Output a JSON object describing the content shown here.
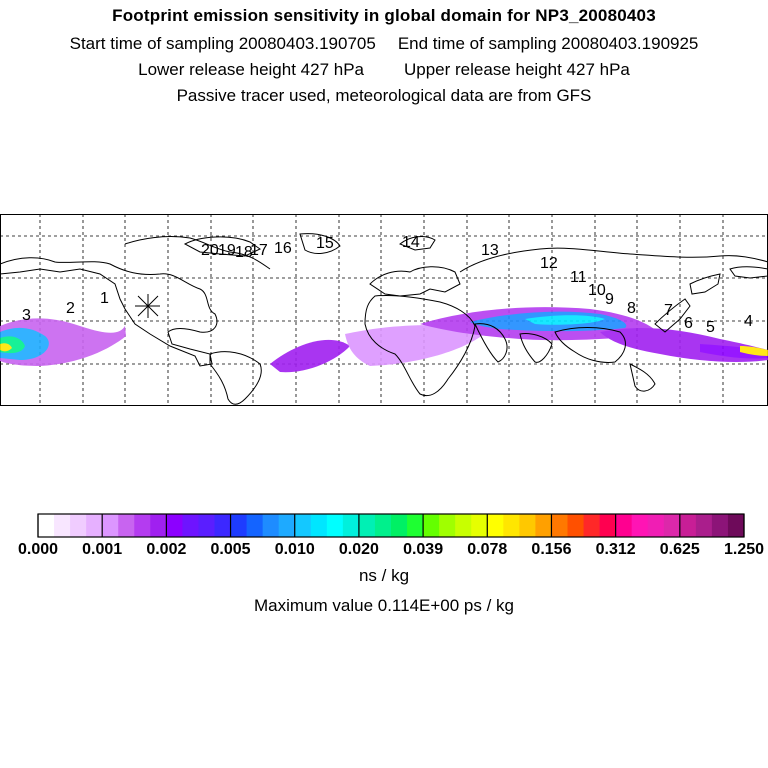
{
  "header": {
    "title": "Footprint emission sensitivity in global domain for NP3_20080403",
    "start_label": "Start time of sampling 20080403.190705",
    "end_label": "End time of sampling 20080403.190925",
    "lower_label": "Lower release height  427 hPa",
    "upper_label": "Upper release height  427 hPa",
    "tracer_note": "Passive tracer used, meteorological data are from GFS"
  },
  "map": {
    "release_marker": "asterisk-symbol",
    "trajectory_labels": [
      "1",
      "2",
      "3",
      "4",
      "5",
      "6",
      "7",
      "8",
      "9",
      "10",
      "11",
      "12",
      "13",
      "14",
      "15",
      "16",
      "17",
      "18",
      "19",
      "20"
    ]
  },
  "colorbar": {
    "colors": [
      "#ffffff",
      "#f8e6ff",
      "#f0ccff",
      "#e6b0ff",
      "#dc96ff",
      "#c864f0",
      "#b43cf0",
      "#a020f0",
      "#8c00ff",
      "#6e14ff",
      "#5a1eff",
      "#3c28ff",
      "#1e3cff",
      "#1464ff",
      "#1e8cff",
      "#1eaaff",
      "#14c8ff",
      "#00e6ff",
      "#00ffff",
      "#00f0dc",
      "#00f0b4",
      "#00f08c",
      "#00f064",
      "#1eff32",
      "#64ff00",
      "#a0ff00",
      "#c8ff00",
      "#e6ff00",
      "#ffff00",
      "#ffe600",
      "#ffc800",
      "#ffa000",
      "#ff7800",
      "#ff5000",
      "#ff2828",
      "#ff0050",
      "#ff0090",
      "#ff14b4",
      "#f01eb4",
      "#dc28aa",
      "#c81e96",
      "#aa1e8c",
      "#8c1478",
      "#6e0a5a"
    ],
    "tick_labels": [
      "0.000",
      "0.001",
      "0.002",
      "0.005",
      "0.010",
      "0.020",
      "0.039",
      "0.078",
      "0.156",
      "0.312",
      "0.625",
      "1.250"
    ]
  },
  "unit_label": "ns / kg",
  "max_label": "Maximum value  0.114E+00 ps / kg"
}
